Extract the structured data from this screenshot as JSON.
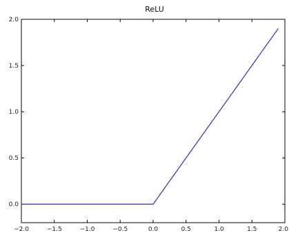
{
  "chart_data": {
    "type": "line",
    "title": "ReLU",
    "xlabel": "",
    "ylabel": "",
    "xlim": [
      -2.0,
      2.0
    ],
    "ylim": [
      -0.2,
      2.0
    ],
    "grid": false,
    "x_ticks": [
      -2.0,
      -1.5,
      -1.0,
      -0.5,
      0.0,
      0.5,
      1.0,
      1.5,
      2.0
    ],
    "x_tick_labels": [
      "−2.0",
      "−1.5",
      "−1.0",
      "−0.5",
      "0.0",
      "0.5",
      "1.0",
      "1.5",
      "2.0"
    ],
    "y_ticks": [
      0.0,
      0.5,
      1.0,
      1.5,
      2.0
    ],
    "y_tick_labels": [
      "0.0",
      "0.5",
      "1.0",
      "1.5",
      "2.0"
    ],
    "series": [
      {
        "color": "#3b3bbf",
        "x": [
          -2.0,
          0.0,
          1.9
        ],
        "y": [
          0.0,
          0.0,
          1.9
        ]
      }
    ]
  }
}
